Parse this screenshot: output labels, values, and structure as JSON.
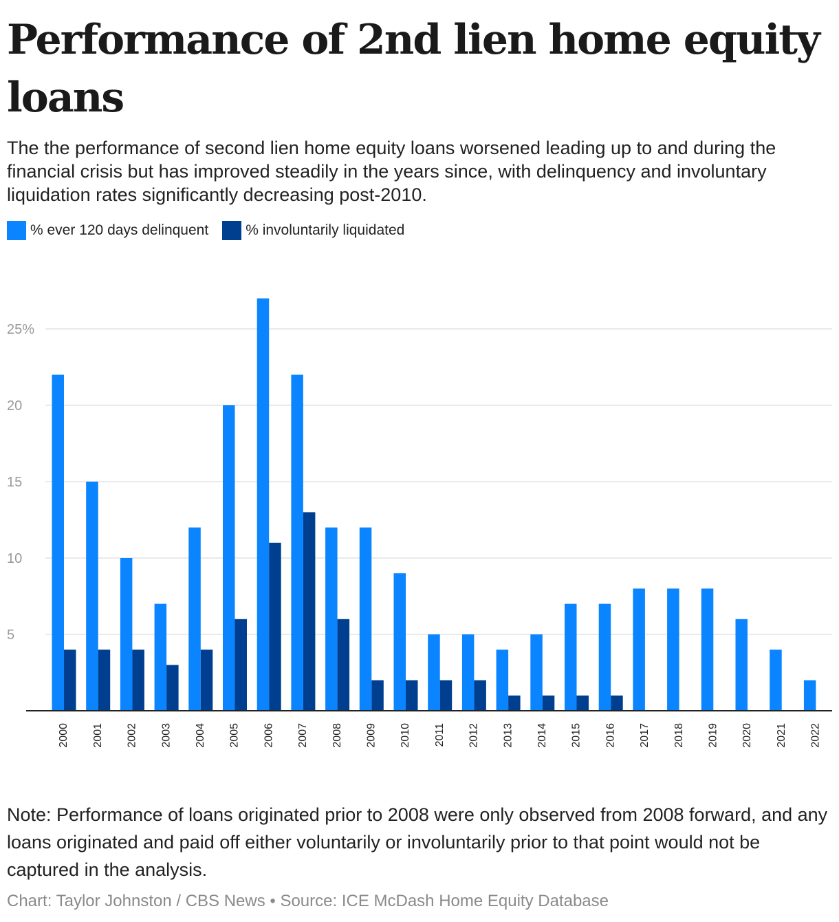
{
  "title": "Performance of 2nd lien home equity loans",
  "subtitle": "The the performance of second lien home equity loans worsened leading up to and during the financial crisis but has improved steadily in the years since, with delinquency and involuntary liquidation rates significantly decreasing post-2010.",
  "note": "Note: Performance of loans originated prior to 2008 were only observed from 2008 forward, and any loans originated and paid off either voluntarily or involuntarily prior to that point would not be captured in the analysis.",
  "credit": "Chart: Taylor Johnston / CBS News • Source: ICE McDash Home Equity Database",
  "colors": {
    "delinquent": "#0a84ff",
    "liquidated": "#003f8f",
    "grid": "#e3e3e3",
    "axis": "#222222",
    "tick_label": "#9a9a9a"
  },
  "chart_data": {
    "type": "bar",
    "categories": [
      "2000",
      "2001",
      "2002",
      "2003",
      "2004",
      "2005",
      "2006",
      "2007",
      "2008",
      "2009",
      "2010",
      "2011",
      "2012",
      "2013",
      "2014",
      "2015",
      "2016",
      "2017",
      "2018",
      "2019",
      "2020",
      "2021",
      "2022"
    ],
    "series": [
      {
        "name": "% ever 120 days delinquent",
        "color": "#0a84ff",
        "values": [
          22,
          15,
          10,
          7,
          12,
          20,
          27,
          22,
          12,
          12,
          9,
          5,
          5,
          4,
          5,
          7,
          7,
          8,
          8,
          8,
          6,
          4,
          2
        ]
      },
      {
        "name": "% involuntarily liquidated",
        "color": "#003f8f",
        "values": [
          4,
          4,
          4,
          3,
          4,
          6,
          11,
          13,
          6,
          2,
          2,
          2,
          2,
          1,
          1,
          1,
          1,
          0,
          0,
          0,
          0,
          0,
          0
        ]
      }
    ],
    "yticks": [
      5,
      10,
      15,
      20,
      25
    ],
    "ytick_labels": [
      "5",
      "10",
      "15",
      "20",
      "25%"
    ],
    "ylim": [
      0,
      27
    ],
    "grid": true,
    "legend": "top-left"
  }
}
